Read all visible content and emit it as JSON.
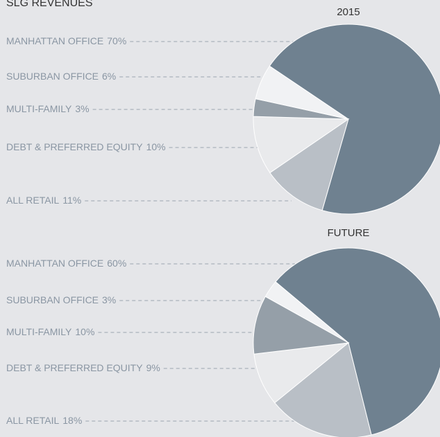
{
  "title": "SLG REVENUES",
  "chart_data": [
    {
      "type": "pie",
      "title": "2015",
      "categories": [
        "MANHATTAN OFFICE",
        "ALL RETAIL",
        "DEBT & PREFERRED EQUITY",
        "MULTI-FAMILY",
        "SUBURBAN OFFICE"
      ],
      "values": [
        70,
        11,
        10,
        3,
        6
      ],
      "value_labels": [
        "70%",
        "11%",
        "10%",
        "3%",
        "6%"
      ],
      "colors": [
        "#6f8190",
        "#b9bfc6",
        "#e9eaec",
        "#959fa8",
        "#f1f2f4"
      ]
    },
    {
      "type": "pie",
      "title": "FUTURE",
      "categories": [
        "MANHATTAN OFFICE",
        "ALL RETAIL",
        "DEBT & PREFERRED EQUITY",
        "MULTI-FAMILY",
        "SUBURBAN OFFICE"
      ],
      "values": [
        60,
        18,
        9,
        10,
        3
      ],
      "value_labels": [
        "60%",
        "18%",
        "9%",
        "10%",
        "3%"
      ],
      "colors": [
        "#6f8190",
        "#b9bfc6",
        "#e9eaec",
        "#959fa8",
        "#f1f2f4"
      ]
    }
  ]
}
